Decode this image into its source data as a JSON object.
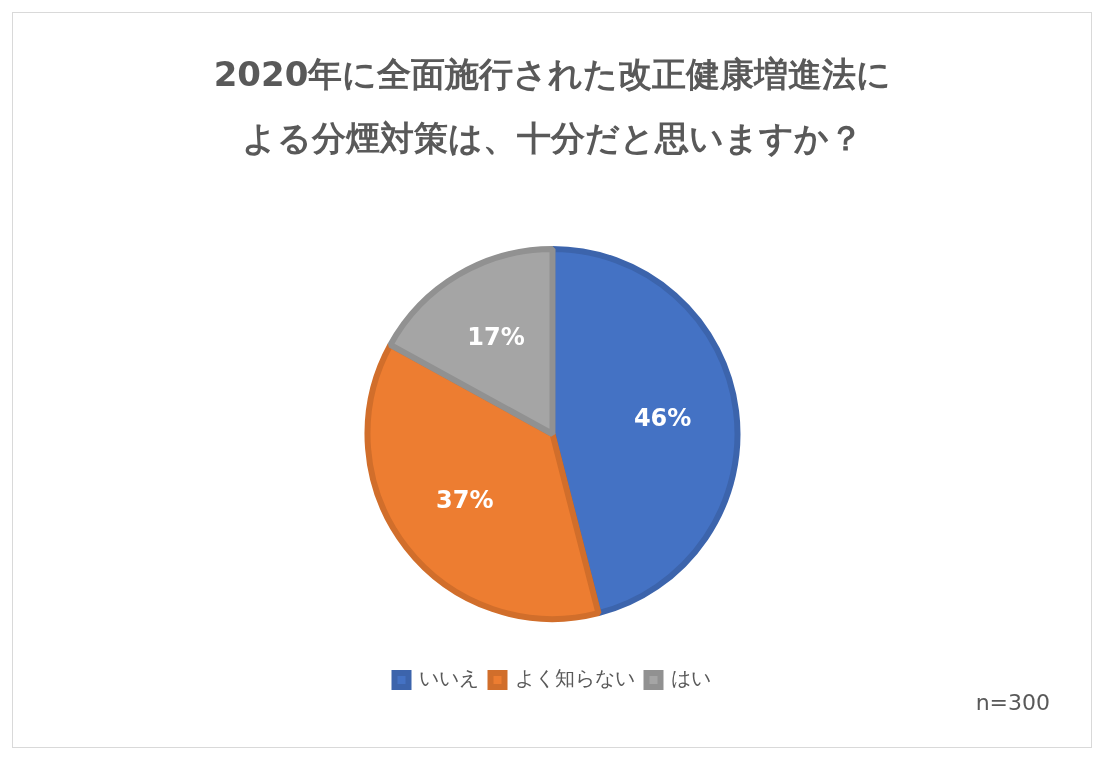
{
  "chart_data": {
    "type": "pie",
    "title": "2020年に全面施行された改正健康増進法による分煙対策は、十分だと思いますか？",
    "categories": [
      "いいえ",
      "よく知らない",
      "はい"
    ],
    "values": [
      46,
      37,
      17
    ],
    "value_labels": [
      "46%",
      "37%",
      "17%"
    ],
    "colors": [
      "#4472c4",
      "#ed7d31",
      "#a5a5a5"
    ],
    "legend": "bottom",
    "annotations": [
      "n=300"
    ]
  }
}
